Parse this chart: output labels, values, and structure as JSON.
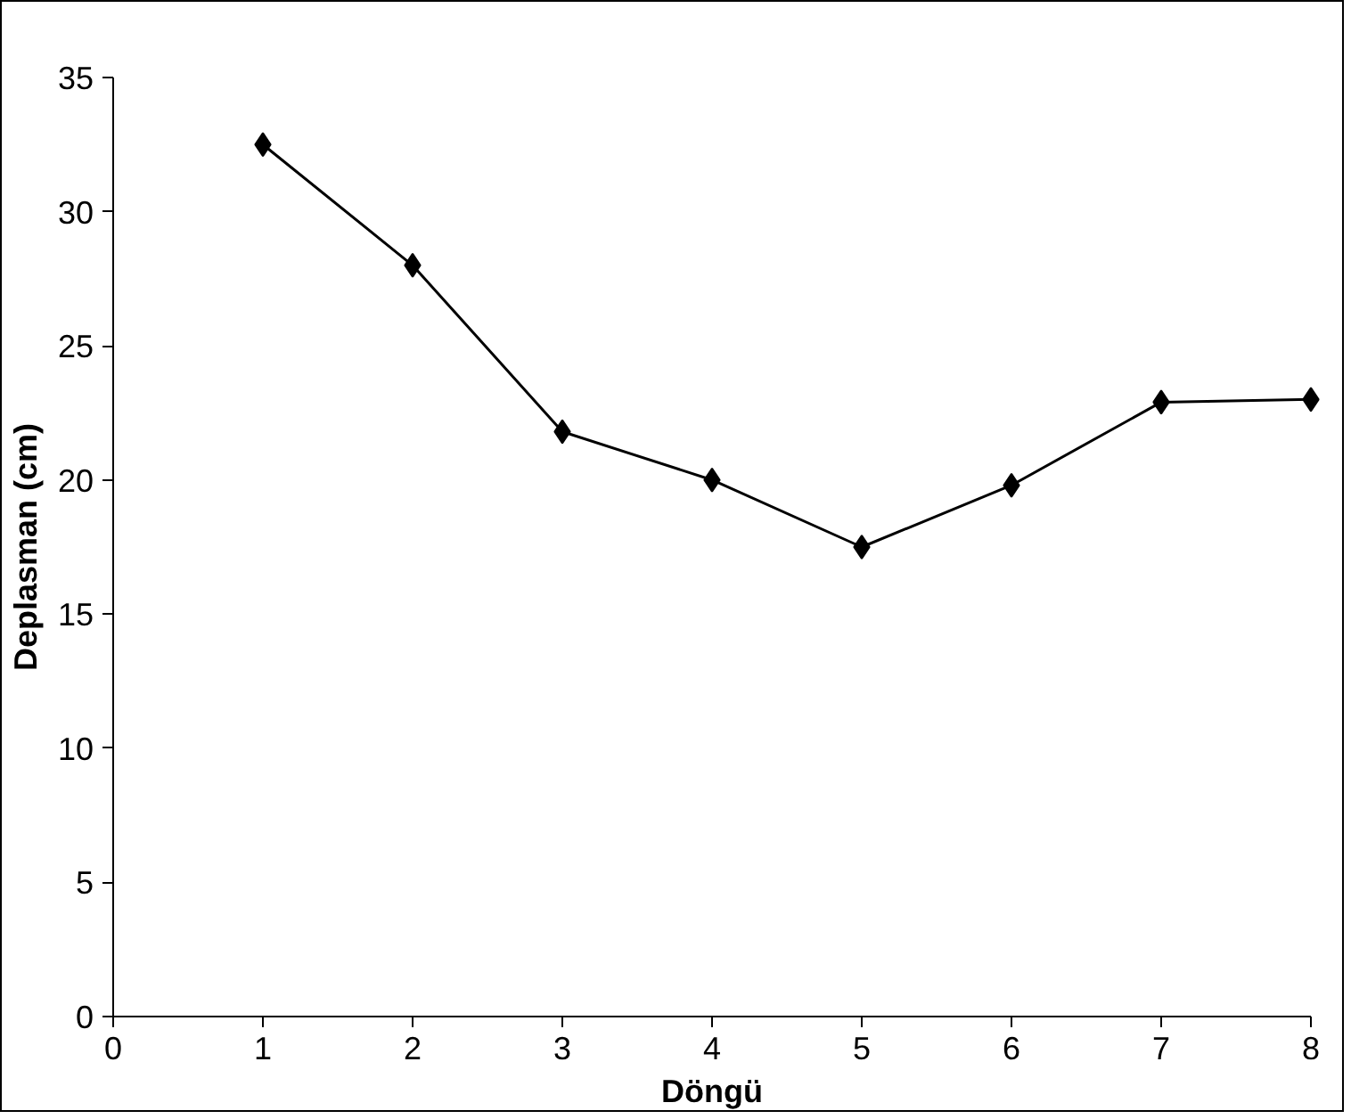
{
  "chart_data": {
    "type": "line",
    "xlabel": "Döngü",
    "ylabel": "Deplasman (cm)",
    "x": [
      1,
      2,
      3,
      4,
      5,
      6,
      7,
      8
    ],
    "series": [
      {
        "color": "#000000",
        "values": [
          32.5,
          28.0,
          21.8,
          20.0,
          17.5,
          19.8,
          22.9,
          23.0
        ]
      }
    ],
    "xlim": [
      0,
      8
    ],
    "xticks": [
      0,
      1,
      2,
      3,
      4,
      5,
      6,
      7,
      8
    ],
    "ylim": [
      0,
      35
    ],
    "yticks": [
      0,
      5,
      10,
      15,
      20,
      25,
      30,
      35
    ],
    "grid": false,
    "marker": "diamond",
    "line_style": "solid"
  }
}
